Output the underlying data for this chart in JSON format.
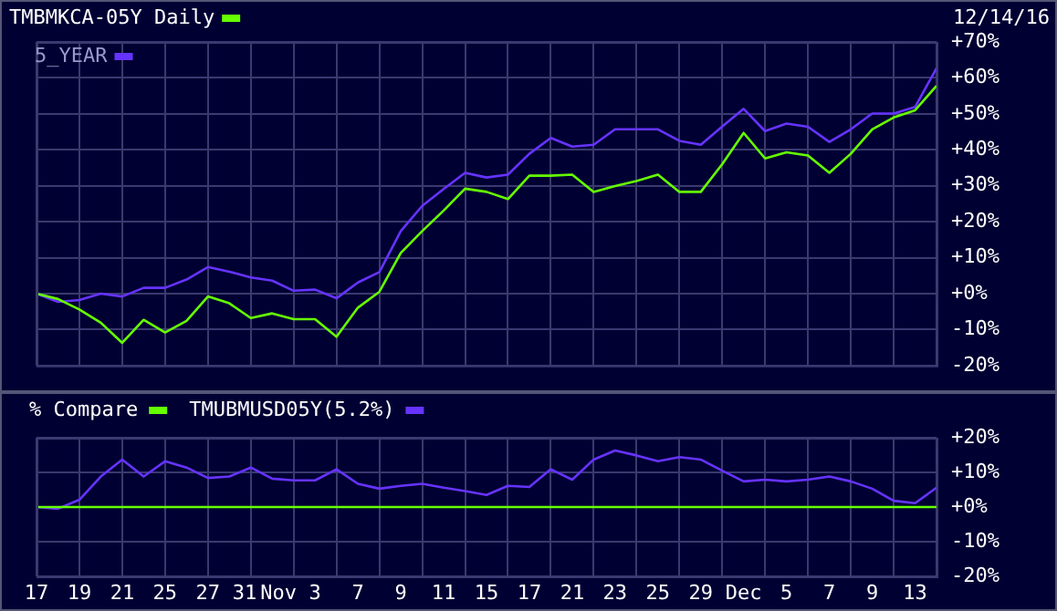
{
  "chart_data": [
    {
      "type": "line",
      "categories": [
        null,
        null,
        null,
        null,
        null,
        null,
        null,
        null,
        null,
        null,
        null,
        null,
        null,
        null,
        null,
        null,
        null,
        null,
        null,
        null,
        null,
        null,
        null,
        null,
        null,
        null,
        null,
        null,
        null,
        null,
        null,
        null,
        null,
        null,
        null,
        null,
        null,
        null,
        null,
        null,
        null,
        null,
        null
      ],
      "series": [
        {
          "name": "TMBMKCA-05Y Daily",
          "color": "#66ff00",
          "values": [
            0,
            -1.5,
            -4.4,
            -8.1,
            -13.7,
            -7.3,
            -10.8,
            -7.6,
            -0.8,
            -2.7,
            -6.8,
            -5.5,
            -7.1,
            -7.1,
            -12,
            -3.9,
            0.5,
            11.3,
            17.4,
            23.1,
            29.2,
            28.3,
            26.3,
            32.8,
            32.8,
            33.1,
            28.3,
            29.9,
            31.3,
            33.1,
            28.3,
            28.3,
            36,
            44.7,
            37.6,
            39.3,
            38.4,
            33.6,
            38.9,
            45.7,
            49,
            51,
            57.8
          ]
        },
        {
          "name": "5_YEAR",
          "color": "#6633ff",
          "values": [
            0,
            -2.3,
            -1.8,
            0,
            -0.8,
            1.6,
            1.6,
            3.9,
            7.4,
            6.1,
            4.5,
            3.6,
            0.8,
            1.1,
            -1.3,
            3.1,
            6,
            17.4,
            24.4,
            29.1,
            33.6,
            32.3,
            33.1,
            38.9,
            43.3,
            40.9,
            41.4,
            45.7,
            45.7,
            45.7,
            42.5,
            41.4,
            46.5,
            51.4,
            45.2,
            47.3,
            46.4,
            42.2,
            45.7,
            50.1,
            50.1,
            51.9,
            62.7
          ]
        }
      ],
      "ylim": [
        -20,
        70
      ],
      "yticks": [
        {
          "value": -20,
          "label": "-20%"
        },
        {
          "value": -10,
          "label": "-10%"
        },
        {
          "value": 0,
          "label": "+0%"
        },
        {
          "value": 10,
          "label": "+10%"
        },
        {
          "value": 20,
          "label": "+20%"
        },
        {
          "value": 30,
          "label": "+30%"
        },
        {
          "value": 40,
          "label": "+40%"
        },
        {
          "value": 50,
          "label": "+50%"
        },
        {
          "value": 60,
          "label": "+60%"
        },
        {
          "value": 70,
          "label": "+70%"
        }
      ],
      "annotations": [
        "12/14/16"
      ],
      "grid": true,
      "legend": "top left",
      "tick_labels": "y"
    },
    {
      "type": "line",
      "categories": [
        "17",
        null,
        "19",
        null,
        "21",
        null,
        "25",
        null,
        "27",
        null,
        "31",
        "Nov",
        null,
        "3",
        null,
        "7",
        null,
        "9",
        null,
        "11",
        null,
        "15",
        null,
        "17",
        null,
        "21",
        null,
        "23",
        null,
        "25",
        null,
        "29",
        null,
        "Dec",
        null,
        "5",
        null,
        "7",
        null,
        "9",
        null,
        "13",
        null
      ],
      "series": [
        {
          "name": "% Compare",
          "color": "#66ff00",
          "values": [
            0,
            0,
            0,
            0,
            0,
            0,
            0,
            0,
            0,
            0,
            0,
            0,
            0,
            0,
            0,
            0,
            0,
            0,
            0,
            0,
            0,
            0,
            0,
            0,
            0,
            0,
            0,
            0,
            0,
            0,
            0,
            0,
            0,
            0,
            0,
            0,
            0,
            0,
            0,
            0,
            0,
            0,
            0
          ]
        },
        {
          "name": "TMUBMUSD05Y(5.2%)",
          "color": "#6633ff",
          "values": [
            0,
            -0.5,
            2.1,
            8.8,
            13.7,
            8.8,
            13.2,
            11.4,
            8.4,
            8.8,
            11.4,
            8.2,
            7.7,
            7.7,
            10.9,
            6.7,
            5.3,
            6.1,
            6.7,
            5.6,
            4.6,
            3.5,
            6.1,
            5.8,
            10.9,
            7.9,
            13.7,
            16.3,
            14.9,
            13.2,
            14.4,
            13.7,
            10.5,
            7.4,
            7.9,
            7.4,
            7.9,
            8.8,
            7.4,
            5.3,
            1.8,
            1.1,
            5.6
          ]
        }
      ],
      "ylim": [
        -20,
        20
      ],
      "yticks": [
        {
          "value": -20,
          "label": "-20%"
        },
        {
          "value": -10,
          "label": "-10%"
        },
        {
          "value": 0,
          "label": "+0%"
        },
        {
          "value": 10,
          "label": "+10%"
        },
        {
          "value": 20,
          "label": "+20%"
        }
      ],
      "grid": true,
      "legend": "top"
    }
  ]
}
